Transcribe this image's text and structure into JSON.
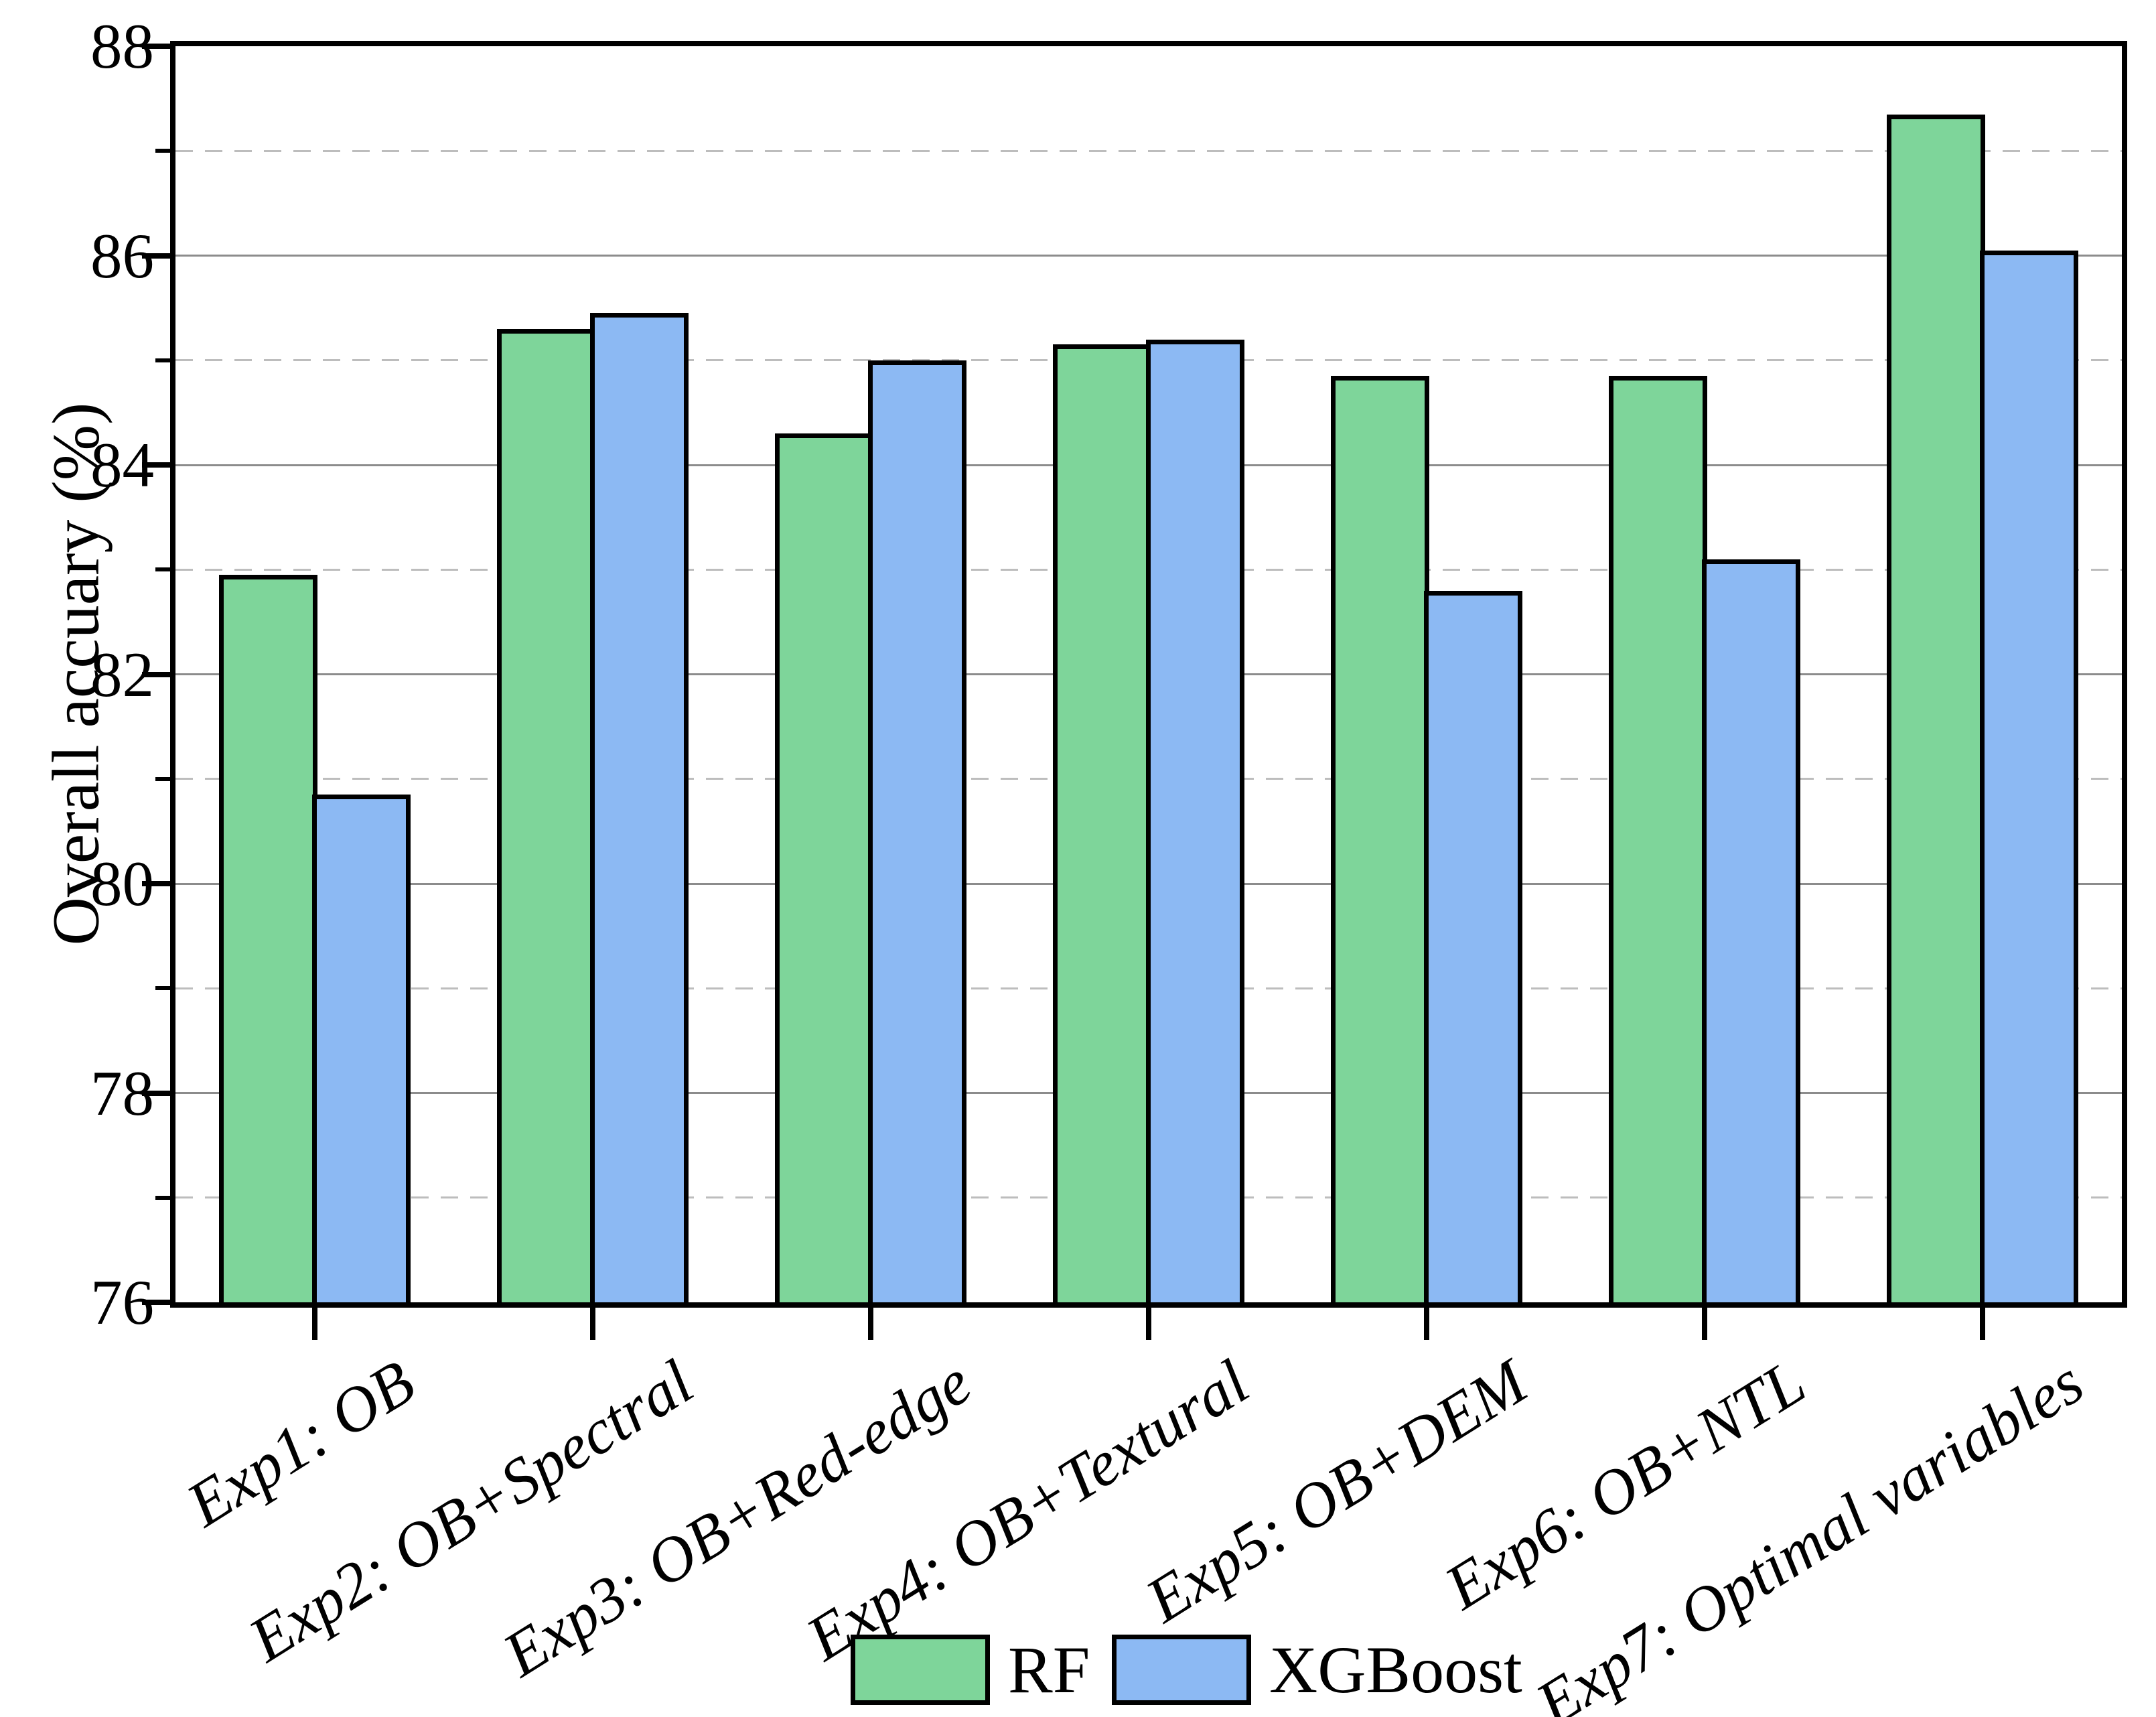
{
  "chart_data": {
    "type": "bar",
    "title": "",
    "xlabel": "",
    "ylabel": "Overall accuary (%)",
    "ylim": [
      76,
      88
    ],
    "yticks_major": [
      88,
      86,
      84,
      82,
      80,
      78,
      76
    ],
    "yticks_minor": [
      87,
      85,
      83,
      81,
      79,
      77
    ],
    "grid": {
      "major_style": "solid",
      "minor_style": "dashed",
      "major_color": "#8c8c8c",
      "minor_color": "#bdbdbd"
    },
    "legend_position": "bottom-center",
    "categories": [
      "Exp1: OB",
      "Exp2: OB+Spectral",
      "Exp3: OB+Red-edge",
      "Exp4: OB+Textural",
      "Exp5: OB+DEM",
      "Exp6: OB+NTL",
      "Exp7: Optimal variables"
    ],
    "series": [
      {
        "name": "RF",
        "color": "#7ed59a",
        "edge_color": "#000000",
        "values": [
          82.95,
          85.3,
          84.3,
          85.15,
          84.85,
          84.85,
          87.35
        ]
      },
      {
        "name": "XGBoost",
        "color": "#8cb9f3",
        "edge_color": "#000000",
        "values": [
          80.85,
          85.45,
          85.0,
          85.2,
          82.8,
          83.1,
          86.05
        ]
      }
    ]
  }
}
